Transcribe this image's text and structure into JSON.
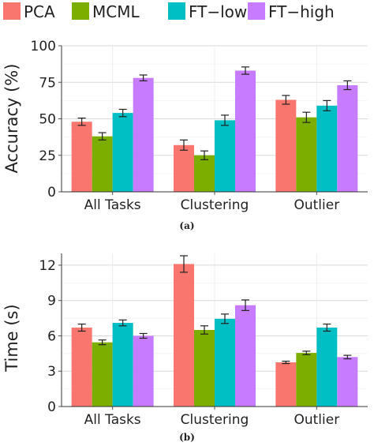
{
  "colors": {
    "PCA": "#f8766d",
    "MCML": "#7cae00",
    "FT-low": "#00bfc4",
    "FT-high": "#c77cff"
  },
  "legend": {
    "items": [
      {
        "label": "PCA",
        "color": "#f8766d"
      },
      {
        "label": "MCML",
        "color": "#7cae00"
      },
      {
        "label": "FT−low",
        "color": "#00bfc4"
      },
      {
        "label": "FT−high",
        "color": "#c77cff"
      }
    ]
  },
  "chart_data": [
    {
      "type": "bar",
      "caption": "(a)",
      "ylabel": "Accuracy (%)",
      "ylim": [
        0,
        100
      ],
      "yticks": [
        0,
        25,
        50,
        75,
        100
      ],
      "categories": [
        "All Tasks",
        "Clustering",
        "Outlier"
      ],
      "grid": true,
      "error_bars": true,
      "series": [
        {
          "name": "PCA",
          "values": [
            48,
            32,
            63
          ],
          "errors": [
            2.5,
            3.5,
            3
          ]
        },
        {
          "name": "MCML",
          "values": [
            38,
            25,
            51
          ],
          "errors": [
            2.5,
            3,
            3.5
          ]
        },
        {
          "name": "FT−low",
          "values": [
            54,
            49,
            59
          ],
          "errors": [
            2.5,
            3.5,
            3.5
          ]
        },
        {
          "name": "FT−high",
          "values": [
            78,
            83,
            73
          ],
          "errors": [
            2,
            2.5,
            3
          ]
        }
      ]
    },
    {
      "type": "bar",
      "caption": "(b)",
      "ylabel": "Time (s)",
      "ylim": [
        0,
        13
      ],
      "yticks": [
        0,
        3,
        6,
        9,
        12
      ],
      "categories": [
        "All Tasks",
        "Clustering",
        "Outlier"
      ],
      "grid": true,
      "error_bars": true,
      "series": [
        {
          "name": "PCA",
          "values": [
            6.7,
            12.1,
            3.75
          ],
          "errors": [
            0.3,
            0.7,
            0.1
          ]
        },
        {
          "name": "MCML",
          "values": [
            5.45,
            6.5,
            4.55
          ],
          "errors": [
            0.2,
            0.35,
            0.15
          ]
        },
        {
          "name": "FT−low",
          "values": [
            7.1,
            7.45,
            6.7
          ],
          "errors": [
            0.25,
            0.4,
            0.3
          ]
        },
        {
          "name": "FT−high",
          "values": [
            6.0,
            8.6,
            4.2
          ],
          "errors": [
            0.2,
            0.45,
            0.15
          ]
        }
      ]
    }
  ]
}
